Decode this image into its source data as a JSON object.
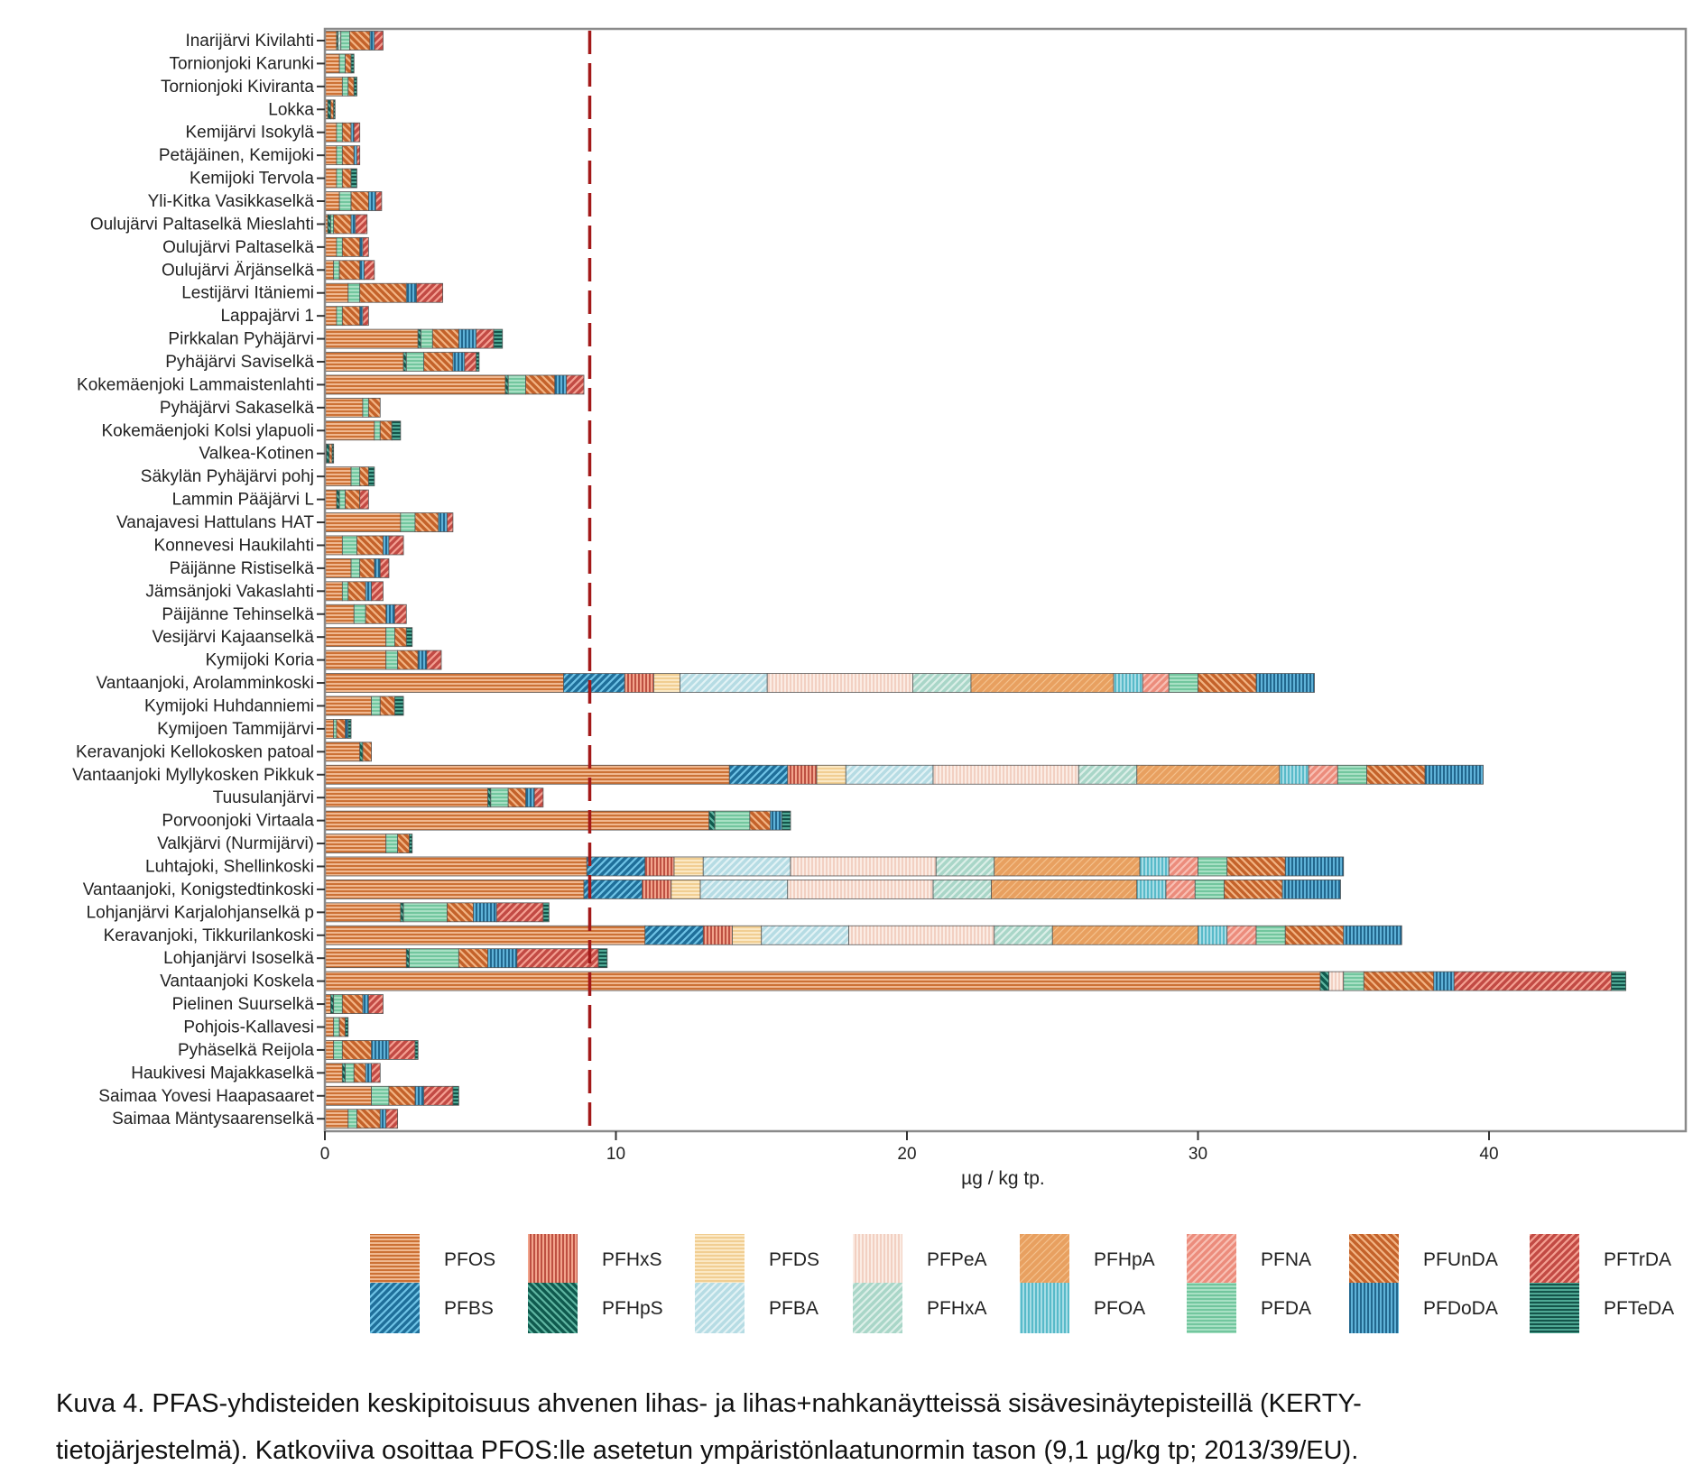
{
  "chart_data": {
    "type": "bar",
    "orientation": "horizontal",
    "stacked": true,
    "title": "",
    "xlabel": "µg / kg tp.",
    "ylabel": "",
    "xlim": [
      0,
      46.5
    ],
    "xticks": [
      0,
      10,
      20,
      30,
      40
    ],
    "grid": false,
    "legend_position": "bottom",
    "reference_line": {
      "value": 9.1,
      "style": "dashed",
      "color": "#a31919",
      "label": "PFOS EQS 9,1 µg/kg tp"
    },
    "compounds": [
      {
        "name": "PFOS",
        "fill": "#c8692b",
        "stripe": "#f0b890",
        "pattern": "horizontal"
      },
      {
        "name": "PFBS",
        "fill": "#1f6f9a",
        "stripe": "#6fc3e6",
        "pattern": "diag-up"
      },
      {
        "name": "PFHxS",
        "fill": "#b8463a",
        "stripe": "#f2a48c",
        "pattern": "vertical"
      },
      {
        "name": "PFHpS",
        "fill": "#0f5a4e",
        "stripe": "#5fb6a2",
        "pattern": "diag-down"
      },
      {
        "name": "PFDS",
        "fill": "#f0cc8c",
        "stripe": "#fbe8c4",
        "pattern": "horizontal"
      },
      {
        "name": "PFBA",
        "fill": "#b6dce4",
        "stripe": "#e2f2f5",
        "pattern": "diag-up"
      },
      {
        "name": "PFPeA",
        "fill": "#f1cdbf",
        "stripe": "#fbece4",
        "pattern": "vertical"
      },
      {
        "name": "PFHxA",
        "fill": "#a9d6c8",
        "stripe": "#dcefe8",
        "pattern": "diag-up"
      },
      {
        "name": "PFHpA",
        "fill": "#e8a060",
        "stripe": "#f4c08c",
        "pattern": "diag-up-faint"
      },
      {
        "name": "PFOA",
        "fill": "#4fb6c6",
        "stripe": "#a6dde6",
        "pattern": "vertical"
      },
      {
        "name": "PFNA",
        "fill": "#ec8c7c",
        "stripe": "#f8c0b4",
        "pattern": "diag-up"
      },
      {
        "name": "PFDA",
        "fill": "#6cc39a",
        "stripe": "#a8e0c4",
        "pattern": "horizontal"
      },
      {
        "name": "PFUnDA",
        "fill": "#c4622a",
        "stripe": "#f2b484",
        "pattern": "diag-down"
      },
      {
        "name": "PFDoDA",
        "fill": "#1b5f86",
        "stripe": "#5fb2d8",
        "pattern": "vertical"
      },
      {
        "name": "PFTrDA",
        "fill": "#c24a44",
        "stripe": "#f4a092",
        "pattern": "diag-up"
      },
      {
        "name": "PFTeDA",
        "fill": "#0e4a42",
        "stripe": "#4fa894",
        "pattern": "horizontal"
      }
    ],
    "legend_order": [
      [
        "PFOS",
        "PFHxS",
        "PFDS",
        "PFPeA",
        "PFHpA",
        "PFNA",
        "PFUnDA",
        "PFTrDA"
      ],
      [
        "PFBS",
        "PFHpS",
        "PFBA",
        "PFHxA",
        "PFOA",
        "PFDA",
        "PFDoDA",
        "PFTeDA"
      ]
    ],
    "categories": [
      "Inarijärvi Kivilahti",
      "Tornionjoki Karunki",
      "Tornionjoki Kiviranta",
      "Lokka",
      "Kemijärvi Isokylä",
      "Petäjäinen, Kemijoki",
      "Kemijoki Tervola",
      "Yli-Kitka Vasikkaselkä",
      "Oulujärvi Paltaselkä Mieslahti",
      "Oulujärvi Paltaselkä",
      "Oulujärvi Ärjänselkä",
      "Lestijärvi Itäniemi",
      "Lappajärvi 1",
      "Pirkkalan Pyhäjärvi",
      "Pyhäjärvi Saviselkä",
      "Kokemäenjoki Lammaistenlahti",
      "Pyhäjärvi Sakaselkä",
      "Kokemäenjoki Kolsi ylapuoli",
      "Valkea-Kotinen",
      "Säkylän Pyhäjärvi pohj",
      "Lammin Pääjärvi L",
      "Vanajavesi Hattulans HAT",
      "Konnevesi Haukilahti",
      "Päijänne Ristiselkä",
      "Jämsänjoki Vakaslahti",
      "Päijänne Tehinselkä",
      "Vesijärvi Kajaanselkä",
      "Kymijoki Koria",
      "Vantaanjoki, Arolamminkoski",
      "Kymijoki Huhdanniemi",
      "Kymijoen Tammijärvi",
      "Keravanjoki Kellokosken patoal",
      "Vantaanjoki Myllykosken Pikkuk",
      "Tuusulanjärvi",
      "Porvoonjoki Virtaala",
      "Valkjärvi (Nurmijärvi)",
      "Luhtajoki, Shellinkoski",
      "Vantaanjoki, Konigstedtinkoski",
      "Lohjanjärvi Karjalohjanselkä p",
      "Keravanjoki, Tikkurilankoski",
      "Lohjanjärvi Isoselkä",
      "Vantaanjoki Koskela",
      "Pielinen Suurselkä",
      "Pohjois-Kallavesi",
      "Pyhäselkä Reijola",
      "Haukivesi Majakkaselkä",
      "Saimaa Yovesi Haapasaaret",
      "Saimaa Mäntysaarenselkä"
    ],
    "segments": [
      {
        "PFOS": 0.4,
        "PFHpS": 0.05,
        "PFDA": 0.3,
        "PFHxA": 0.1,
        "PFUnDA": 0.7,
        "PFDoDA": 0.15,
        "PFTrDA": 0.3
      },
      {
        "PFOS": 0.5,
        "PFDA": 0.2,
        "PFUnDA": 0.2,
        "PFTeDA": 0.1
      },
      {
        "PFOS": 0.6,
        "PFDA": 0.2,
        "PFUnDA": 0.2,
        "PFTeDA": 0.1
      },
      {
        "PFOS": 0.1,
        "PFHpS": 0.1,
        "PFUnDA": 0.1,
        "PFTeDA": 0.05
      },
      {
        "PFOS": 0.4,
        "PFDA": 0.2,
        "PFUnDA": 0.3,
        "PFDoDA": 0.1,
        "PFTrDA": 0.2
      },
      {
        "PFOS": 0.4,
        "PFDA": 0.2,
        "PFUnDA": 0.4,
        "PFDoDA": 0.1,
        "PFTrDA": 0.1
      },
      {
        "PFOS": 0.4,
        "PFDA": 0.2,
        "PFUnDA": 0.3,
        "PFTeDA": 0.2
      },
      {
        "PFOS": 0.5,
        "PFDA": 0.4,
        "PFUnDA": 0.6,
        "PFDoDA": 0.25,
        "PFTrDA": 0.2
      },
      {
        "PFOS": 0.1,
        "PFHpS": 0.1,
        "PFDA": 0.1,
        "PFUnDA": 0.6,
        "PFDoDA": 0.15,
        "PFTrDA": 0.4
      },
      {
        "PFOS": 0.4,
        "PFDA": 0.2,
        "PFUnDA": 0.6,
        "PFDoDA": 0.1,
        "PFTrDA": 0.2
      },
      {
        "PFOS": 0.3,
        "PFDA": 0.2,
        "PFUnDA": 0.7,
        "PFDoDA": 0.15,
        "PFTrDA": 0.35
      },
      {
        "PFOS": 0.8,
        "PFDA": 0.4,
        "PFUnDA": 1.6,
        "PFDoDA": 0.35,
        "PFTrDA": 0.9
      },
      {
        "PFOS": 0.4,
        "PFDA": 0.2,
        "PFUnDA": 0.6,
        "PFDoDA": 0.1,
        "PFTrDA": 0.2
      },
      {
        "PFOS": 3.2,
        "PFHpS": 0.1,
        "PFDA": 0.4,
        "PFUnDA": 0.9,
        "PFDoDA": 0.6,
        "PFTrDA": 0.6,
        "PFTeDA": 0.3
      },
      {
        "PFOS": 2.7,
        "PFHpS": 0.1,
        "PFDA": 0.6,
        "PFUnDA": 1.0,
        "PFDoDA": 0.4,
        "PFTrDA": 0.4,
        "PFTeDA": 0.1
      },
      {
        "PFOS": 6.2,
        "PFHpS": 0.1,
        "PFDA": 0.6,
        "PFUnDA": 1.0,
        "PFDoDA": 0.4,
        "PFTrDA": 0.6
      },
      {
        "PFOS": 1.3,
        "PFDA": 0.2,
        "PFUnDA": 0.4
      },
      {
        "PFOS": 1.7,
        "PFDA": 0.2,
        "PFUnDA": 0.4,
        "PFTeDA": 0.3
      },
      {
        "PFOS": 0.05,
        "PFHpS": 0.1,
        "PFUnDA": 0.1,
        "PFTeDA": 0.05
      },
      {
        "PFOS": 0.9,
        "PFDA": 0.3,
        "PFUnDA": 0.3,
        "PFTeDA": 0.2
      },
      {
        "PFOS": 0.4,
        "PFHpS": 0.1,
        "PFDA": 0.2,
        "PFUnDA": 0.5,
        "PFTrDA": 0.3
      },
      {
        "PFOS": 2.6,
        "PFDA": 0.5,
        "PFUnDA": 0.8,
        "PFDoDA": 0.3,
        "PFTrDA": 0.2
      },
      {
        "PFOS": 0.6,
        "PFDA": 0.5,
        "PFUnDA": 0.9,
        "PFDoDA": 0.2,
        "PFTrDA": 0.5
      },
      {
        "PFOS": 0.9,
        "PFDA": 0.3,
        "PFUnDA": 0.5,
        "PFDoDA": 0.2,
        "PFTrDA": 0.3
      },
      {
        "PFOS": 0.6,
        "PFDA": 0.2,
        "PFUnDA": 0.6,
        "PFDoDA": 0.2,
        "PFTrDA": 0.4
      },
      {
        "PFOS": 1.0,
        "PFDA": 0.4,
        "PFUnDA": 0.7,
        "PFDoDA": 0.3,
        "PFTrDA": 0.4
      },
      {
        "PFOS": 2.1,
        "PFDA": 0.3,
        "PFUnDA": 0.4,
        "PFTeDA": 0.2
      },
      {
        "PFOS": 2.1,
        "PFDA": 0.4,
        "PFUnDA": 0.7,
        "PFDoDA": 0.3,
        "PFTrDA": 0.5
      },
      {
        "PFOS": 8.2,
        "PFBS": 2.1,
        "PFHxS": 1.0,
        "PFDS": 0.9,
        "PFBA": 3.0,
        "PFPeA": 5.0,
        "PFHxA": 2.0,
        "PFHpA": 4.9,
        "PFOA": 1.0,
        "PFNA": 0.9,
        "PFDA": 1.0,
        "PFUnDA": 2.0,
        "PFDoDA": 2.0
      },
      {
        "PFOS": 1.6,
        "PFDA": 0.3,
        "PFUnDA": 0.5,
        "PFTeDA": 0.3
      },
      {
        "PFOS": 0.3,
        "PFDA": 0.1,
        "PFUnDA": 0.3,
        "PFDoDA": 0.1,
        "PFTeDA": 0.1
      },
      {
        "PFOS": 1.2,
        "PFHpS": 0.1,
        "PFUnDA": 0.3
      },
      {
        "PFOS": 13.9,
        "PFBS": 2.0,
        "PFHxS": 1.0,
        "PFDS": 1.0,
        "PFBA": 3.0,
        "PFPeA": 5.0,
        "PFHxA": 2.0,
        "PFHpA": 4.9,
        "PFOA": 1.0,
        "PFNA": 1.0,
        "PFDA": 1.0,
        "PFUnDA": 2.0,
        "PFDoDA": 2.0
      },
      {
        "PFOS": 5.6,
        "PFHpS": 0.1,
        "PFDA": 0.6,
        "PFUnDA": 0.6,
        "PFDoDA": 0.3,
        "PFTrDA": 0.3
      },
      {
        "PFOS": 13.2,
        "PFHpS": 0.2,
        "PFDA": 1.2,
        "PFUnDA": 0.7,
        "PFDoDA": 0.4,
        "PFTeDA": 0.3
      },
      {
        "PFOS": 2.1,
        "PFDA": 0.4,
        "PFUnDA": 0.4,
        "PFTeDA": 0.1
      },
      {
        "PFOS": 9.0,
        "PFBS": 2.0,
        "PFHxS": 1.0,
        "PFDS": 1.0,
        "PFBA": 3.0,
        "PFPeA": 5.0,
        "PFHxA": 2.0,
        "PFHpA": 5.0,
        "PFOA": 1.0,
        "PFNA": 1.0,
        "PFDA": 1.0,
        "PFUnDA": 2.0,
        "PFDoDA": 2.0
      },
      {
        "PFOS": 8.9,
        "PFBS": 2.0,
        "PFHxS": 1.0,
        "PFDS": 1.0,
        "PFBA": 3.0,
        "PFPeA": 5.0,
        "PFHxA": 2.0,
        "PFHpA": 5.0,
        "PFOA": 1.0,
        "PFNA": 1.0,
        "PFDA": 1.0,
        "PFUnDA": 2.0,
        "PFDoDA": 2.0
      },
      {
        "PFOS": 2.6,
        "PFHpS": 0.1,
        "PFDA": 1.5,
        "PFUnDA": 0.9,
        "PFDoDA": 0.8,
        "PFTrDA": 1.6,
        "PFTeDA": 0.2
      },
      {
        "PFOS": 11.0,
        "PFBS": 2.0,
        "PFHxS": 1.0,
        "PFDS": 1.0,
        "PFBA": 3.0,
        "PFPeA": 5.0,
        "PFHxA": 2.0,
        "PFHpA": 5.0,
        "PFOA": 1.0,
        "PFNA": 1.0,
        "PFDA": 1.0,
        "PFUnDA": 2.0,
        "PFDoDA": 2.0
      },
      {
        "PFOS": 2.8,
        "PFHpS": 0.1,
        "PFDA": 1.7,
        "PFUnDA": 1.0,
        "PFDoDA": 1.0,
        "PFTrDA": 2.8,
        "PFTeDA": 0.3
      },
      {
        "PFOS": 34.2,
        "PFHpS": 0.3,
        "PFPeA": 0.5,
        "PFDA": 0.7,
        "PFUnDA": 2.4,
        "PFDoDA": 0.7,
        "PFTrDA": 5.4,
        "PFTeDA": 0.5
      },
      {
        "PFOS": 0.2,
        "PFHpS": 0.1,
        "PFDA": 0.3,
        "PFUnDA": 0.7,
        "PFDoDA": 0.2,
        "PFTrDA": 0.5
      },
      {
        "PFOS": 0.3,
        "PFDA": 0.2,
        "PFUnDA": 0.2,
        "PFTeDA": 0.1
      },
      {
        "PFOS": 0.3,
        "PFDA": 0.3,
        "PFUnDA": 1.0,
        "PFDoDA": 0.6,
        "PFTrDA": 0.9,
        "PFTeDA": 0.1
      },
      {
        "PFOS": 0.6,
        "PFHpS": 0.1,
        "PFDA": 0.3,
        "PFUnDA": 0.4,
        "PFDoDA": 0.2,
        "PFTrDA": 0.3
      },
      {
        "PFOS": 1.6,
        "PFDA": 0.6,
        "PFUnDA": 0.9,
        "PFDoDA": 0.3,
        "PFTrDA": 1.0,
        "PFTeDA": 0.2
      },
      {
        "PFOS": 0.8,
        "PFDA": 0.3,
        "PFUnDA": 0.8,
        "PFDoDA": 0.2,
        "PFTrDA": 0.4
      }
    ]
  },
  "caption": {
    "line1": "Kuva 4. PFAS-yhdisteiden keskipitoisuus ahvenen lihas- ja lihas+nahkanäytteissä sisävesinäytepisteillä (KERTY-",
    "line2": "tietojärjestelmä). Katkoviiva osoittaa PFOS:lle asetetun ympäristönlaatunormin tason (9,1 µg/kg tp; 2013/39/EU)."
  }
}
